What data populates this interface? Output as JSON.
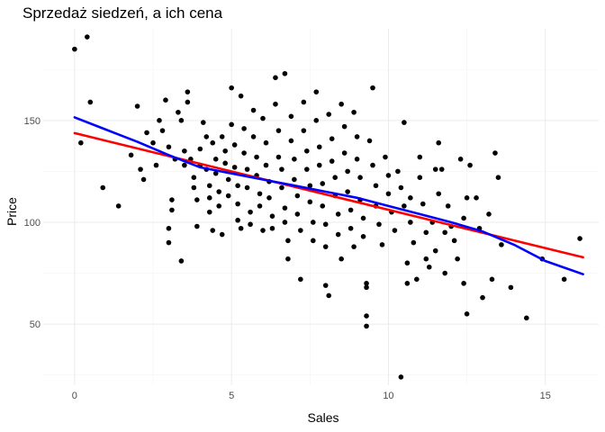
{
  "chart_data": {
    "type": "scatter",
    "title": "Sprzedaż siedzeń, a ich cena",
    "xlabel": "Sales",
    "ylabel": "Price",
    "xlim": [
      -1,
      16.7
    ],
    "ylim": [
      20,
      195
    ],
    "x_ticks": [
      0,
      5,
      10,
      15
    ],
    "y_ticks": [
      50,
      100,
      150
    ],
    "grid": true,
    "legend": "none",
    "point_color": "#000000",
    "points": [
      [
        0.0,
        185
      ],
      [
        0.4,
        191
      ],
      [
        0.2,
        139
      ],
      [
        0.5,
        159
      ],
      [
        0.9,
        117
      ],
      [
        1.4,
        108
      ],
      [
        1.8,
        133
      ],
      [
        2.0,
        157
      ],
      [
        2.1,
        126
      ],
      [
        2.2,
        121
      ],
      [
        2.3,
        144
      ],
      [
        2.5,
        139
      ],
      [
        2.6,
        128
      ],
      [
        2.7,
        150
      ],
      [
        2.8,
        145
      ],
      [
        2.9,
        160
      ],
      [
        3.0,
        97
      ],
      [
        3.0,
        90
      ],
      [
        3.0,
        137
      ],
      [
        3.1,
        106
      ],
      [
        3.2,
        131
      ],
      [
        3.1,
        111
      ],
      [
        3.3,
        154
      ],
      [
        3.4,
        150
      ],
      [
        3.4,
        81
      ],
      [
        3.5,
        135
      ],
      [
        3.5,
        128
      ],
      [
        3.6,
        164
      ],
      [
        3.6,
        159
      ],
      [
        3.7,
        131
      ],
      [
        3.8,
        122
      ],
      [
        3.8,
        117
      ],
      [
        3.9,
        111
      ],
      [
        3.9,
        98
      ],
      [
        4.0,
        136
      ],
      [
        4.0,
        128
      ],
      [
        4.1,
        149
      ],
      [
        4.2,
        142
      ],
      [
        4.2,
        126
      ],
      [
        4.3,
        118
      ],
      [
        4.3,
        112
      ],
      [
        4.3,
        105
      ],
      [
        4.4,
        96
      ],
      [
        4.4,
        139
      ],
      [
        4.5,
        131
      ],
      [
        4.5,
        124
      ],
      [
        4.6,
        115
      ],
      [
        4.6,
        108
      ],
      [
        4.7,
        142
      ],
      [
        4.7,
        94
      ],
      [
        4.8,
        135
      ],
      [
        4.8,
        129
      ],
      [
        4.9,
        121
      ],
      [
        4.9,
        113
      ],
      [
        5.0,
        166
      ],
      [
        5.0,
        148
      ],
      [
        5.1,
        138
      ],
      [
        5.1,
        127
      ],
      [
        5.2,
        118
      ],
      [
        5.2,
        109
      ],
      [
        5.2,
        101
      ],
      [
        5.3,
        97
      ],
      [
        5.3,
        162
      ],
      [
        5.4,
        146
      ],
      [
        5.4,
        134
      ],
      [
        5.5,
        126
      ],
      [
        5.5,
        117
      ],
      [
        5.6,
        105
      ],
      [
        5.6,
        99
      ],
      [
        5.7,
        155
      ],
      [
        5.7,
        142
      ],
      [
        5.8,
        132
      ],
      [
        5.8,
        123
      ],
      [
        5.9,
        114
      ],
      [
        5.9,
        108
      ],
      [
        6.0,
        96
      ],
      [
        6.0,
        151
      ],
      [
        6.1,
        139
      ],
      [
        6.1,
        128
      ],
      [
        6.2,
        120
      ],
      [
        6.2,
        112
      ],
      [
        6.3,
        103
      ],
      [
        6.3,
        97
      ],
      [
        6.4,
        171
      ],
      [
        6.4,
        158
      ],
      [
        6.5,
        145
      ],
      [
        6.5,
        132
      ],
      [
        6.6,
        126
      ],
      [
        6.6,
        117
      ],
      [
        6.7,
        107
      ],
      [
        6.7,
        100
      ],
      [
        6.7,
        173
      ],
      [
        6.8,
        91
      ],
      [
        6.8,
        82
      ],
      [
        6.9,
        152
      ],
      [
        6.9,
        140
      ],
      [
        7.0,
        131
      ],
      [
        7.0,
        121
      ],
      [
        7.1,
        113
      ],
      [
        7.1,
        104
      ],
      [
        7.2,
        96
      ],
      [
        7.2,
        72
      ],
      [
        7.3,
        159
      ],
      [
        7.3,
        145
      ],
      [
        7.4,
        135
      ],
      [
        7.4,
        126
      ],
      [
        7.5,
        118
      ],
      [
        7.5,
        110
      ],
      [
        7.6,
        100
      ],
      [
        7.6,
        91
      ],
      [
        7.7,
        164
      ],
      [
        7.7,
        150
      ],
      [
        7.8,
        137
      ],
      [
        7.8,
        128
      ],
      [
        7.9,
        119
      ],
      [
        7.9,
        108
      ],
      [
        8.0,
        99
      ],
      [
        8.0,
        88
      ],
      [
        8.0,
        69
      ],
      [
        8.1,
        64
      ],
      [
        8.1,
        153
      ],
      [
        8.2,
        141
      ],
      [
        8.2,
        130
      ],
      [
        8.3,
        122
      ],
      [
        8.3,
        113
      ],
      [
        8.4,
        104
      ],
      [
        8.4,
        94
      ],
      [
        8.5,
        82
      ],
      [
        8.5,
        158
      ],
      [
        8.6,
        147
      ],
      [
        8.6,
        134
      ],
      [
        8.7,
        125
      ],
      [
        8.7,
        115
      ],
      [
        8.8,
        106
      ],
      [
        8.8,
        97
      ],
      [
        8.9,
        88
      ],
      [
        8.9,
        154
      ],
      [
        9.0,
        142
      ],
      [
        9.0,
        131
      ],
      [
        9.1,
        122
      ],
      [
        9.1,
        111
      ],
      [
        9.2,
        102
      ],
      [
        9.2,
        93
      ],
      [
        9.3,
        70
      ],
      [
        9.3,
        68
      ],
      [
        9.3,
        54
      ],
      [
        9.3,
        49
      ],
      [
        9.4,
        140
      ],
      [
        9.5,
        166
      ],
      [
        9.5,
        128
      ],
      [
        9.6,
        118
      ],
      [
        9.6,
        108
      ],
      [
        9.7,
        99
      ],
      [
        9.8,
        89
      ],
      [
        9.9,
        132
      ],
      [
        10.0,
        123
      ],
      [
        10.0,
        114
      ],
      [
        10.1,
        105
      ],
      [
        10.2,
        96
      ],
      [
        10.3,
        125
      ],
      [
        10.4,
        117
      ],
      [
        10.4,
        24
      ],
      [
        10.5,
        108
      ],
      [
        10.5,
        149
      ],
      [
        10.6,
        80
      ],
      [
        10.6,
        70
      ],
      [
        10.7,
        112
      ],
      [
        10.7,
        100
      ],
      [
        10.8,
        90
      ],
      [
        10.9,
        72
      ],
      [
        11.0,
        132
      ],
      [
        11.0,
        122
      ],
      [
        11.1,
        109
      ],
      [
        11.2,
        95
      ],
      [
        11.2,
        82
      ],
      [
        11.3,
        78
      ],
      [
        11.4,
        100
      ],
      [
        11.5,
        126
      ],
      [
        11.5,
        86
      ],
      [
        11.6,
        139
      ],
      [
        11.6,
        114
      ],
      [
        11.7,
        126
      ],
      [
        11.8,
        95
      ],
      [
        11.8,
        75
      ],
      [
        11.9,
        108
      ],
      [
        12.0,
        98
      ],
      [
        12.1,
        91
      ],
      [
        12.2,
        82
      ],
      [
        12.3,
        131
      ],
      [
        12.4,
        102
      ],
      [
        12.4,
        70
      ],
      [
        12.5,
        55
      ],
      [
        12.5,
        112
      ],
      [
        12.6,
        128
      ],
      [
        12.8,
        112
      ],
      [
        12.9,
        97
      ],
      [
        13.0,
        63
      ],
      [
        13.2,
        104
      ],
      [
        13.3,
        72
      ],
      [
        13.4,
        134
      ],
      [
        13.5,
        122
      ],
      [
        13.6,
        89
      ],
      [
        13.9,
        68
      ],
      [
        14.4,
        53
      ],
      [
        14.9,
        82
      ],
      [
        15.6,
        72
      ],
      [
        16.1,
        92
      ]
    ],
    "series": [
      {
        "name": "linear",
        "color": "#ff0000",
        "x": [
          0,
          16.2
        ],
        "y": [
          143.8,
          82.8
        ]
      },
      {
        "name": "loess",
        "color": "#0000ff",
        "x": [
          0,
          1,
          2,
          3,
          4,
          5,
          6,
          7,
          8,
          9,
          10,
          11,
          12,
          13,
          14,
          15,
          16.2
        ],
        "y": [
          151.5,
          145.5,
          139.5,
          133,
          127,
          124,
          121,
          118,
          115,
          112,
          108,
          104,
          100,
          95.5,
          89,
          81,
          74.5
        ]
      }
    ]
  }
}
